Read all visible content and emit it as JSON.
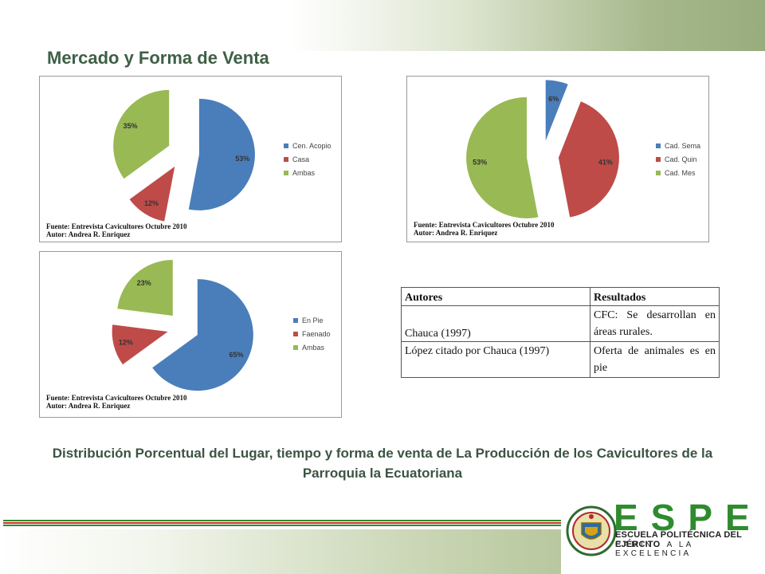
{
  "title": "Mercado y Forma de Venta",
  "chart_data": [
    {
      "type": "pie",
      "categories": [
        "Cen. Acopio",
        "Casa",
        "Ambas"
      ],
      "values": [
        53,
        12,
        35
      ],
      "labels": [
        "53%",
        "12%",
        "35%"
      ],
      "colors": [
        "#4a7ebb",
        "#be4b48",
        "#98b954"
      ],
      "legend": "right",
      "source_lines": [
        "Fuente: Entrevista Cavicultores Octubre 2010",
        "Autor: Andrea R. Enriquez"
      ]
    },
    {
      "type": "pie",
      "categories": [
        "Cad. Sema",
        "Cad. Quin",
        "Cad. Mes"
      ],
      "values": [
        6,
        41,
        53
      ],
      "labels": [
        "6%",
        "41%",
        "53%"
      ],
      "colors": [
        "#4a7ebb",
        "#be4b48",
        "#98b954"
      ],
      "legend": "right",
      "source_lines": [
        "Fuente: Entrevista Cavicultores Octubre 2010",
        "Autor: Andrea R. Enriquez"
      ]
    },
    {
      "type": "pie",
      "categories": [
        "En Pie",
        "Faenado",
        "Ambas"
      ],
      "values": [
        65,
        12,
        23
      ],
      "labels": [
        "65%",
        "12%",
        "23%"
      ],
      "colors": [
        "#4a7ebb",
        "#be4b48",
        "#98b954"
      ],
      "legend": "right",
      "source_lines": [
        "Fuente: Entrevista Cavicultores Octubre 2010",
        "Autor: Andrea R. Enriquez"
      ]
    }
  ],
  "table": {
    "headers": [
      "Autores",
      "Resultados"
    ],
    "rows": [
      [
        "Chauca (1997)",
        "CFC: Se desarrollan en áreas rurales."
      ],
      [
        "López citado por Chauca (1997)",
        "Oferta de animales es en pie"
      ]
    ]
  },
  "caption": "Distribución Porcentual del Lugar, tiempo y forma de venta de La Producción de los Cavicultores de la Parroquia la Ecuatoriana",
  "logo": {
    "name": "ESPE",
    "line1": "ESCUELA POLITÉCNICA DEL EJÉRCITO",
    "line2": "CAMINO A LA EXCELENCIA"
  },
  "colors": {
    "title": "#3f5f46",
    "stripe_green": "#2e8b2e",
    "stripe_red": "#d42a2a"
  }
}
